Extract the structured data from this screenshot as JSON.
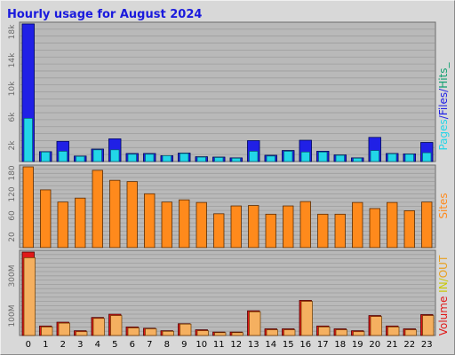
{
  "title": "Hourly usage for August 2024",
  "colors": {
    "pages": "#2020e6",
    "files": "#22d6e8",
    "hits": "#11a070",
    "sites": "#ff8a1c",
    "volume": "#e01818",
    "in": "#f5b060",
    "out": "#e8a020",
    "panel": "#b9b9b9",
    "title": "#1a1add"
  },
  "legend_top": [
    "Pages",
    "/",
    "Files",
    "/",
    "Hits",
    "_"
  ],
  "legend_mid": [
    "Sites"
  ],
  "legend_bot": [
    "Volume",
    " ",
    "IN",
    "/",
    "OUT"
  ],
  "chart_data": [
    {
      "type": "bar",
      "title": "Hourly usage for August 2024",
      "categories": [
        "0",
        "1",
        "2",
        "3",
        "4",
        "5",
        "6",
        "7",
        "8",
        "9",
        "10",
        "11",
        "12",
        "13",
        "14",
        "15",
        "16",
        "17",
        "18",
        "19",
        "20",
        "21",
        "22",
        "23"
      ],
      "y_ticks": [
        "2k",
        "6k",
        "10k",
        "14k",
        "18k"
      ],
      "ylim": [
        0,
        18800
      ],
      "series": [
        {
          "name": "Hits",
          "values": [
            18800,
            1350,
            2750,
            750,
            1700,
            3100,
            1100,
            1100,
            800,
            1150,
            650,
            600,
            500,
            2850,
            850,
            1500,
            2900,
            1400,
            900,
            500,
            3300,
            1100,
            1050,
            2600
          ]
        },
        {
          "name": "Files",
          "values": [
            5900,
            1300,
            1400,
            700,
            1600,
            1600,
            1000,
            1000,
            800,
            1100,
            600,
            550,
            450,
            1400,
            750,
            1400,
            1300,
            1300,
            850,
            450,
            1500,
            1050,
            1000,
            1200
          ]
        },
        {
          "name": "Pages",
          "values": [
            18800,
            1350,
            2750,
            750,
            1700,
            3100,
            1100,
            1100,
            800,
            1150,
            650,
            600,
            500,
            2850,
            850,
            1500,
            2900,
            1400,
            900,
            500,
            3300,
            1100,
            1050,
            2600
          ]
        }
      ]
    },
    {
      "type": "bar",
      "categories": [
        "0",
        "1",
        "2",
        "3",
        "4",
        "5",
        "6",
        "7",
        "8",
        "9",
        "10",
        "11",
        "12",
        "13",
        "14",
        "15",
        "16",
        "17",
        "18",
        "19",
        "20",
        "21",
        "22",
        "23"
      ],
      "y_ticks": [
        "20",
        "60",
        "120",
        "180"
      ],
      "ylim": [
        0,
        186
      ],
      "series": [
        {
          "name": "Sites",
          "values": [
            186,
            133,
            105,
            114,
            178,
            155,
            152,
            124,
            105,
            110,
            104,
            78,
            96,
            97,
            77,
            96,
            106,
            77,
            77,
            104,
            90,
            104,
            85,
            105
          ]
        }
      ]
    },
    {
      "type": "bar",
      "categories": [
        "0",
        "1",
        "2",
        "3",
        "4",
        "5",
        "6",
        "7",
        "8",
        "9",
        "10",
        "11",
        "12",
        "13",
        "14",
        "15",
        "16",
        "17",
        "18",
        "19",
        "20",
        "21",
        "22",
        "23"
      ],
      "y_ticks": [
        "100M",
        "300M"
      ],
      "ylim": [
        0,
        440
      ],
      "series": [
        {
          "name": "Volume",
          "values": [
            440,
            50,
            70,
            25,
            95,
            112,
            45,
            38,
            25,
            62,
            30,
            18,
            18,
            130,
            35,
            35,
            185,
            50,
            35,
            25,
            105,
            50,
            35,
            110
          ]
        },
        {
          "name": "IN",
          "values": [
            410,
            45,
            65,
            20,
            90,
            105,
            40,
            35,
            22,
            60,
            25,
            15,
            15,
            125,
            30,
            30,
            180,
            45,
            30,
            20,
            100,
            45,
            30,
            105
          ]
        }
      ]
    }
  ]
}
